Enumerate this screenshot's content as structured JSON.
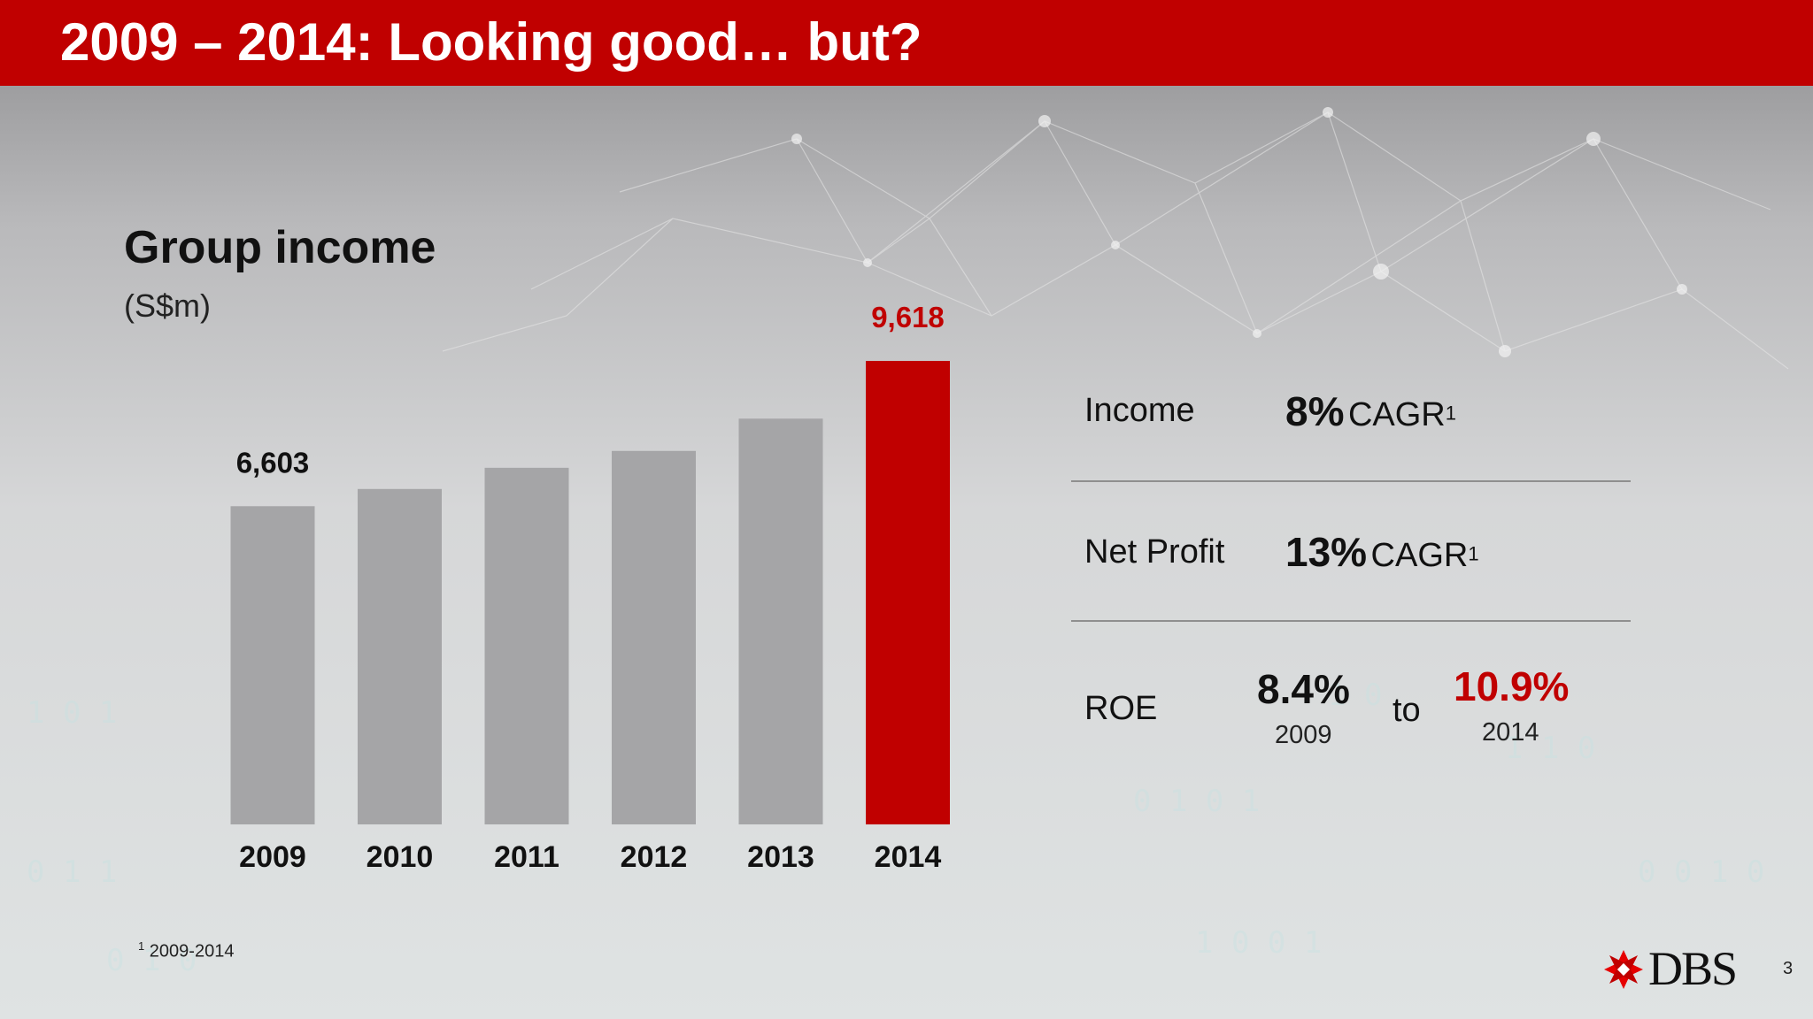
{
  "header": {
    "title": "2009 – 2014: Looking good… but?"
  },
  "chart_data": {
    "type": "bar",
    "title": "Group income",
    "unit": "(S$m)",
    "categories": [
      "2009",
      "2010",
      "2011",
      "2012",
      "2013",
      "2014"
    ],
    "values": [
      6603,
      6960,
      7400,
      7750,
      8420,
      9618
    ],
    "data_labels": [
      "6,603",
      "",
      "",
      "",
      "",
      "9,618"
    ],
    "highlight_index": 5,
    "colors": {
      "bar": "#a5a5a7",
      "highlight": "#c00000"
    },
    "ylim": [
      0,
      9618
    ]
  },
  "metrics": {
    "income": {
      "label": "Income",
      "value": "8%",
      "suffix": "CAGR",
      "note": "1"
    },
    "net_profit": {
      "label": "Net Profit",
      "value": "13%",
      "suffix": "CAGR",
      "note": "1"
    },
    "roe": {
      "label": "ROE",
      "from_value": "8.4%",
      "from_year": "2009",
      "connector": "to",
      "to_value": "10.9%",
      "to_year": "2014"
    }
  },
  "footnote": {
    "marker": "1",
    "text": "2009-2014"
  },
  "brand": {
    "name": "DBS",
    "accent": "#c00000"
  },
  "page_number": "3"
}
